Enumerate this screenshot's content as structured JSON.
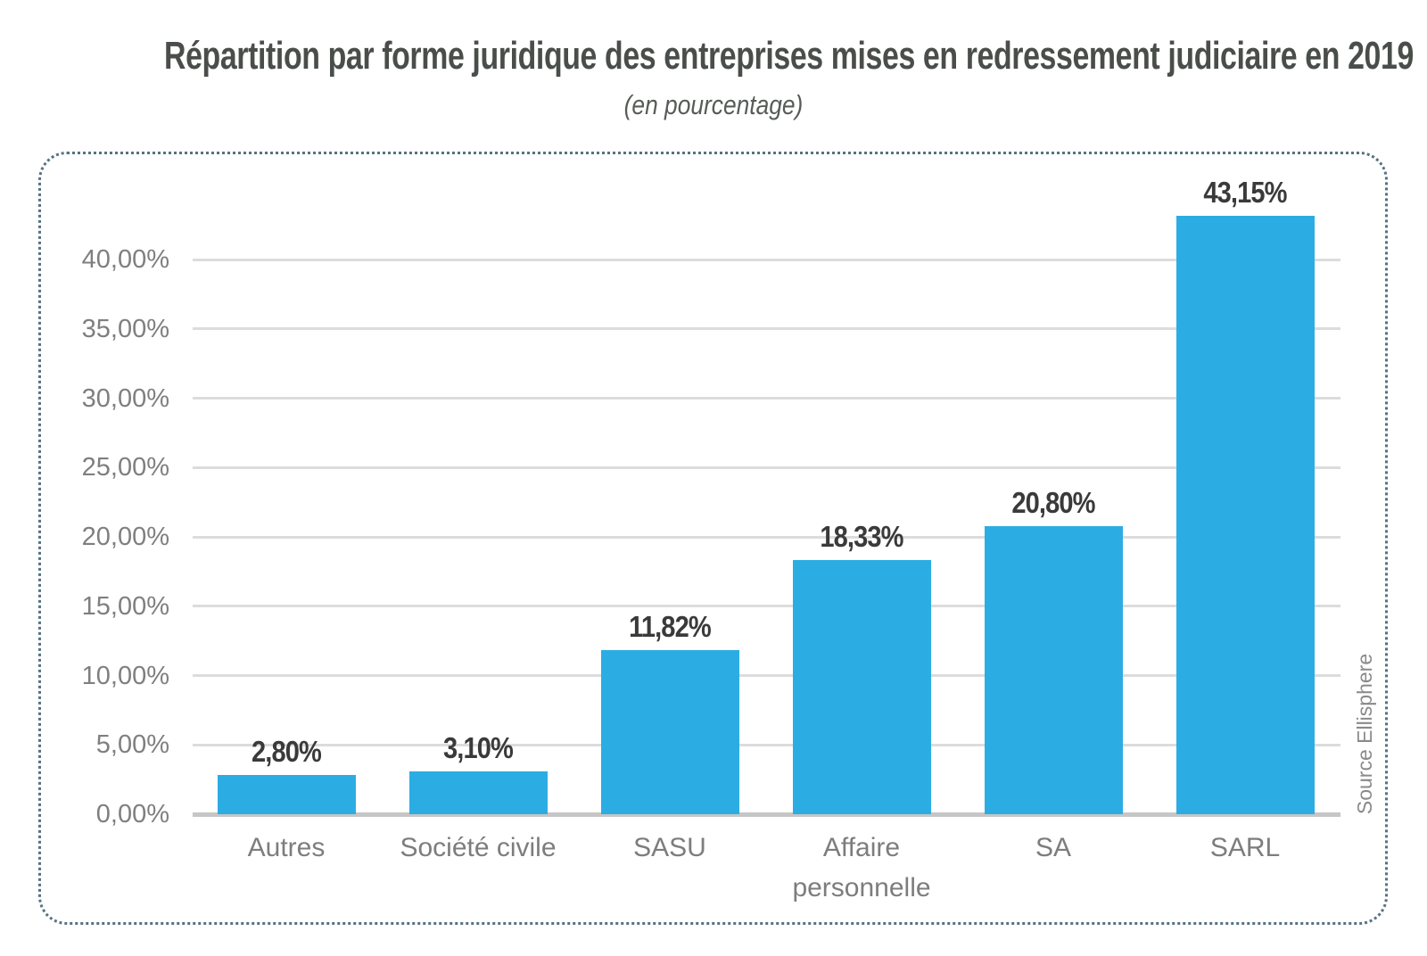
{
  "page": {
    "title": "Répartition par forme juridique des entreprises mises en redressement judiciaire en 2019",
    "subtitle": "(en pourcentage)",
    "source": "Source Ellisphere"
  },
  "chart_data": {
    "type": "bar",
    "title": "Répartition par forme juridique des entreprises mises en redressement judiciaire en 2019",
    "subtitle": "(en pourcentage)",
    "categories": [
      "Autres",
      "Société civile",
      "SASU",
      "Affaire personnelle",
      "SA",
      "SARL"
    ],
    "values": [
      2.8,
      3.1,
      11.82,
      18.33,
      20.8,
      43.15
    ],
    "value_labels": [
      "2,80%",
      "3,10%",
      "11,82%",
      "18,33%",
      "20,80%",
      "43,15%"
    ],
    "yticks": [
      "0,00%",
      "5,00%",
      "10,00%",
      "15,00%",
      "20,00%",
      "25,00%",
      "30,00%",
      "35,00%",
      "40,00%"
    ],
    "ytick_values": [
      0,
      5,
      10,
      15,
      20,
      25,
      30,
      35,
      40
    ],
    "xlabel": "",
    "ylabel": "",
    "ylim": [
      0,
      45
    ],
    "grid": true,
    "legend": false,
    "bar_color": "#2BADE3",
    "grid_color": "#dcdcdc",
    "axis_color": "#c6c6c6",
    "border_color": "#567280",
    "source": "Source Ellisphere"
  }
}
